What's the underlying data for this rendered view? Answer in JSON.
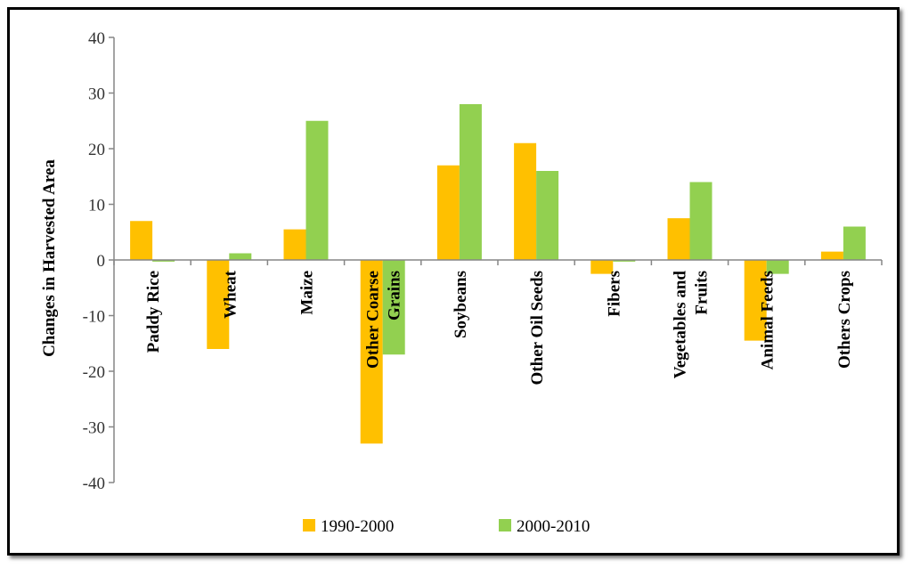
{
  "chart_data": {
    "type": "bar",
    "title": "",
    "xlabel": "",
    "ylabel": "Changes in Harvested Area",
    "ylim": [
      -40,
      40
    ],
    "ytick_step": 10,
    "grid": false,
    "legend_position": "bottom",
    "categories": [
      [
        "Paddy Rice"
      ],
      [
        "Wheat"
      ],
      [
        "Maize"
      ],
      [
        "Other Coarse",
        "Grains"
      ],
      [
        "Soybeans"
      ],
      [
        "Other Oil Seeds"
      ],
      [
        "Fibers"
      ],
      [
        "Vegetables and",
        "Fruits"
      ],
      [
        "Animal Feeds"
      ],
      [
        "Others Crops"
      ]
    ],
    "series": [
      {
        "name": "1990-2000",
        "color": "#ffc000",
        "values": [
          7,
          -16,
          5.5,
          -33,
          17,
          21,
          -2.5,
          7.5,
          -14.5,
          1.5
        ]
      },
      {
        "name": "2000-2010",
        "color": "#92d050",
        "values": [
          -0.3,
          1.2,
          25,
          -17,
          28,
          16,
          -0.3,
          14,
          -2.5,
          6
        ]
      }
    ]
  }
}
